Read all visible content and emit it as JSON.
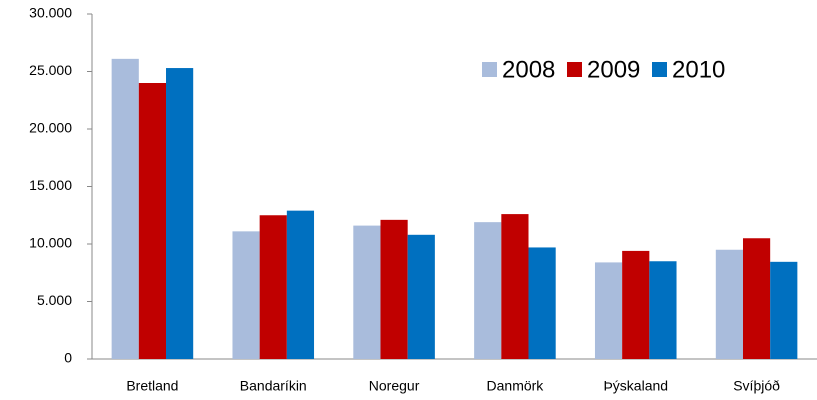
{
  "chart_data": {
    "type": "bar",
    "categories": [
      "Bretland",
      "Bandaríkin",
      "Noregur",
      "Danmörk",
      "Þýskaland",
      "Svíþjóð"
    ],
    "series": [
      {
        "name": "2008",
        "color": "#a9bcdc",
        "values": [
          26100,
          11100,
          11600,
          11900,
          8400,
          9500
        ]
      },
      {
        "name": "2009",
        "color": "#c00000",
        "values": [
          24000,
          12500,
          12100,
          12600,
          9400,
          10500
        ]
      },
      {
        "name": "2010",
        "color": "#0070c0",
        "values": [
          25300,
          12900,
          10800,
          9700,
          8500,
          8450
        ]
      }
    ],
    "ylim": [
      0,
      30000
    ],
    "yticks": [
      0,
      {
        "value": 5000,
        "label": "5.000"
      },
      {
        "value": 10000,
        "label": "10.000"
      },
      {
        "value": 15000,
        "label": "15.000"
      },
      {
        "value": 20000,
        "label": "20.000"
      },
      {
        "value": 25000,
        "label": "25.000"
      },
      {
        "value": 30000,
        "label": "30.000"
      }
    ],
    "grid": false,
    "legend": "top-right"
  }
}
